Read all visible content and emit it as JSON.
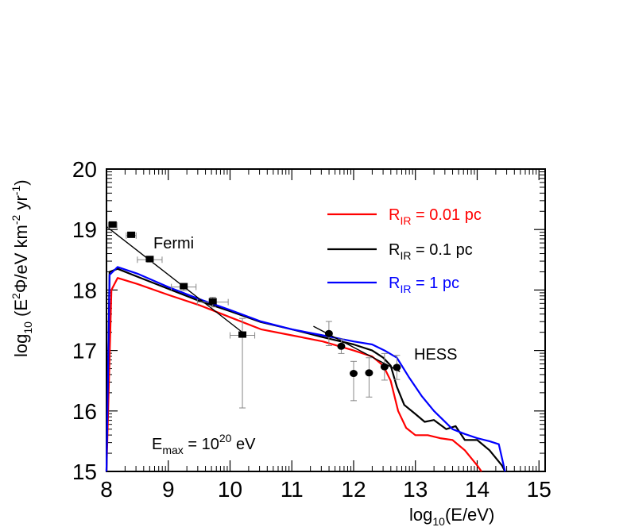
{
  "chart_data": {
    "type": "line",
    "xlabel": "log10(E/eV)",
    "ylabel": "log10 (E²Φ/eV km⁻² yr⁻¹)",
    "xlim": [
      8,
      15.1
    ],
    "ylim": [
      15,
      20
    ],
    "xticks": [
      "8",
      "9",
      "10",
      "11",
      "12",
      "13",
      "14",
      "15"
    ],
    "yticks": [
      "15",
      "16",
      "17",
      "18",
      "19",
      "20"
    ],
    "grid": false,
    "legend_position": "top-right",
    "colors": {
      "red": "#ff0000",
      "black": "#000000",
      "blue": "#0000ff",
      "errorbar": "#888888"
    },
    "series": [
      {
        "name": "R_IR = 0.01 pc",
        "legend_main": "R",
        "legend_sub": "IR",
        "legend_rest": " = 0.01 pc",
        "color": "#ff0000",
        "x": [
          8.0,
          8.08,
          8.18,
          8.5,
          9.0,
          9.5,
          10.0,
          10.5,
          11.0,
          11.5,
          12.0,
          12.3,
          12.48,
          12.6,
          12.72,
          12.85,
          13.0,
          13.2,
          13.4,
          13.6,
          13.8,
          14.0,
          14.07
        ],
        "y": [
          15.0,
          18.0,
          18.2,
          18.1,
          17.92,
          17.75,
          17.55,
          17.35,
          17.25,
          17.15,
          17.0,
          16.9,
          16.75,
          16.5,
          16.0,
          15.72,
          15.6,
          15.6,
          15.55,
          15.52,
          15.35,
          15.1,
          15.0
        ]
      },
      {
        "name": "R_IR = 0.1 pc",
        "legend_main": "R",
        "legend_sub": "IR",
        "legend_rest": " = 0.1 pc",
        "color": "#000000",
        "x": [
          8.0,
          8.05,
          8.18,
          8.5,
          9.0,
          9.5,
          10.0,
          10.5,
          11.0,
          11.5,
          12.0,
          12.3,
          12.48,
          12.6,
          12.7,
          12.82,
          13.0,
          13.15,
          13.3,
          13.5,
          13.65,
          13.8,
          14.0,
          14.2,
          14.4,
          14.45
        ],
        "y": [
          15.0,
          18.3,
          18.35,
          18.22,
          18.02,
          17.82,
          17.65,
          17.47,
          17.35,
          17.22,
          17.1,
          17.0,
          16.88,
          16.75,
          16.4,
          16.1,
          15.95,
          15.82,
          15.85,
          15.7,
          15.75,
          15.52,
          15.52,
          15.35,
          15.1,
          15.0
        ]
      },
      {
        "name": "R_IR = 1 pc",
        "legend_main": "R",
        "legend_sub": "IR",
        "legend_rest": " = 1 pc",
        "color": "#0000ff",
        "x": [
          8.0,
          8.05,
          8.18,
          8.5,
          9.0,
          9.5,
          10.0,
          10.5,
          11.0,
          11.5,
          12.0,
          12.3,
          12.5,
          12.7,
          12.9,
          13.1,
          13.3,
          13.45,
          13.6,
          13.8,
          14.0,
          14.2,
          14.35,
          14.45
        ],
        "y": [
          15.0,
          18.25,
          18.38,
          18.27,
          18.05,
          17.85,
          17.67,
          17.48,
          17.35,
          17.25,
          17.15,
          17.1,
          17.0,
          16.88,
          16.55,
          16.25,
          16.0,
          15.85,
          15.7,
          15.62,
          15.55,
          15.5,
          15.45,
          15.0
        ]
      }
    ],
    "fermi_data": {
      "label": "Fermi",
      "x": [
        8.1,
        8.4,
        8.7,
        9.25,
        9.72,
        10.2
      ],
      "y": [
        19.07,
        18.9,
        18.5,
        18.05,
        17.8,
        17.25
      ],
      "xerr": [
        0.07,
        0.08,
        0.2,
        0.2,
        0.25,
        0.2
      ],
      "yerr_lo": [
        0.03,
        0.03,
        0.04,
        0.06,
        0.08,
        1.2
      ],
      "yerr_hi": [
        0.03,
        0.03,
        0.04,
        0.06,
        0.08,
        0.28
      ],
      "fit_x": [
        8.0,
        10.2
      ],
      "fit_y": [
        19.05,
        17.3
      ]
    },
    "hess_data": {
      "label": "HESS",
      "x": [
        11.6,
        11.8,
        12.0,
        12.25,
        12.5,
        12.7
      ],
      "y": [
        17.28,
        17.07,
        16.62,
        16.63,
        16.73,
        16.72
      ],
      "xerr": [
        0.0,
        0.0,
        0.0,
        0.0,
        0.0,
        0.0
      ],
      "yerr_lo": [
        0.2,
        0.12,
        0.45,
        0.4,
        0.22,
        0.2
      ],
      "yerr_hi": [
        0.2,
        0.12,
        0.2,
        0.25,
        0.22,
        0.2
      ],
      "fit_x": [
        11.35,
        12.75
      ],
      "fit_y": [
        17.4,
        16.65
      ]
    },
    "annotation": {
      "emax_main": "E",
      "emax_sub": "max",
      "emax_eq": " = 10",
      "emax_sup": "20",
      "emax_unit": " eV"
    },
    "axis_title_parts": {
      "x_main": "log",
      "x_sub": "10",
      "x_rest": "(E/eV)",
      "y_main": "log",
      "y_sub": "10",
      "y_a": " (E",
      "y_sup1": "2",
      "y_b": "Φ/eV km",
      "y_sup2": "-2",
      "y_c": " yr",
      "y_sup3": "-1",
      "y_d": ")"
    }
  }
}
